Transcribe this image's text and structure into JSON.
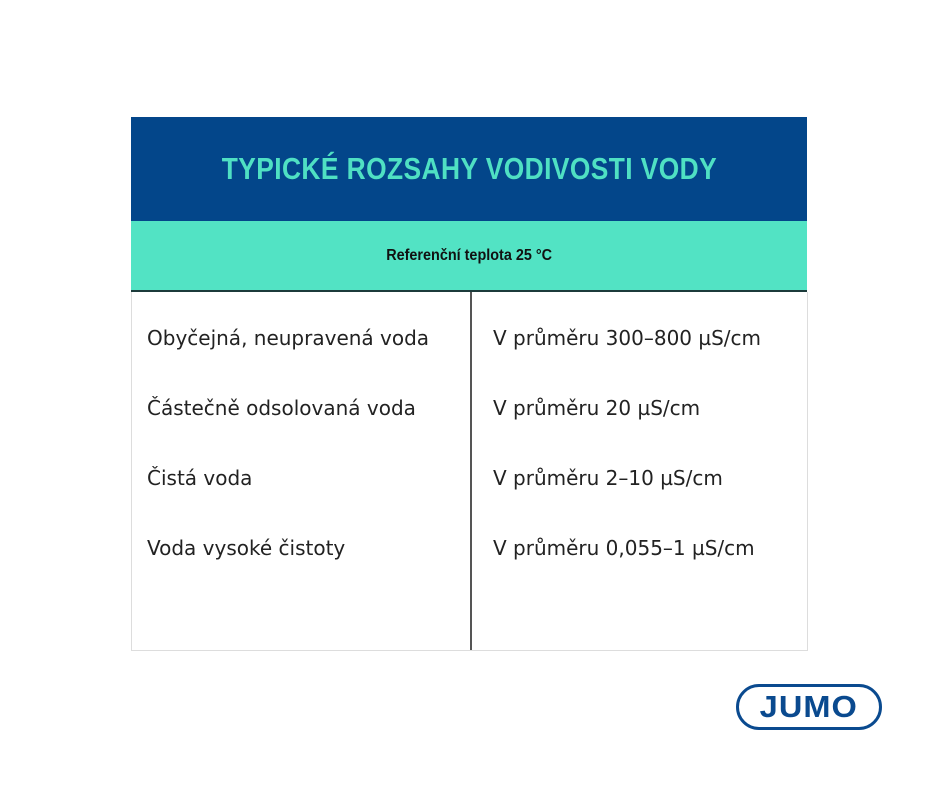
{
  "title": "TYPICKÉ ROZSAHY VODIVOSTI VODY",
  "subtitle": "Referenční teplota 25 °C",
  "rows": [
    {
      "water": "Obyčejná, neupravená voda",
      "range": "V průměru 300–800 µS/cm"
    },
    {
      "water": "Částečně odsolovaná voda",
      "range": "V průměru 20 µS/cm"
    },
    {
      "water": "Čistá voda",
      "range": "V průměru 2–10 µS/cm"
    },
    {
      "water": "Voda vysoké čistoty",
      "range": "V průměru 0,055–1 µS/cm"
    }
  ],
  "logo": "JUMO",
  "colors": {
    "header": "#03468a",
    "accent": "#52e3c4",
    "title_text": "#4fe0c3",
    "logo": "#0a4a8f"
  }
}
